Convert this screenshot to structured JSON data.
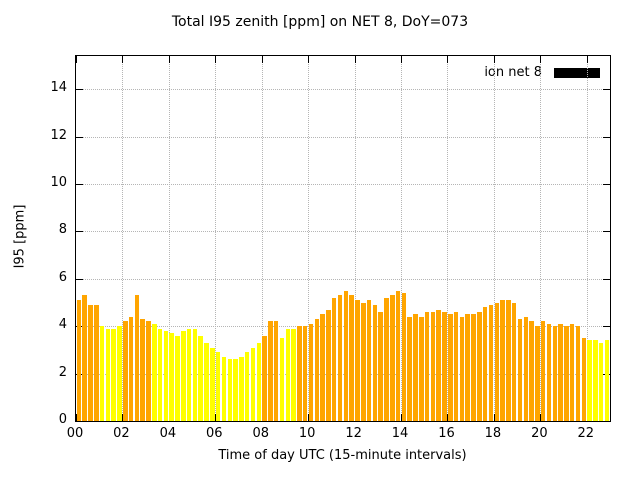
{
  "chart_data": {
    "type": "bar",
    "title": "Total I95 zenith [ppm] on NET 8, DoY=073",
    "xlabel": "Time of day UTC (15-minute intervals)",
    "ylabel": "I95 [ppm]",
    "xlim": [
      0,
      23
    ],
    "ylim": [
      0,
      15.4
    ],
    "grid": true,
    "start_hour": 0,
    "interval_hours": 0.25,
    "ytick_values": [
      0,
      2,
      4,
      6,
      8,
      10,
      12,
      14
    ],
    "xticks": [
      {
        "v": 0,
        "t": "00"
      },
      {
        "v": 2,
        "t": "02"
      },
      {
        "v": 4,
        "t": "04"
      },
      {
        "v": 6,
        "t": "06"
      },
      {
        "v": 8,
        "t": "08"
      },
      {
        "v": 10,
        "t": "10"
      },
      {
        "v": 12,
        "t": "12"
      },
      {
        "v": 14,
        "t": "14"
      },
      {
        "v": 16,
        "t": "16"
      },
      {
        "v": 18,
        "t": "18"
      },
      {
        "v": 20,
        "t": "20"
      },
      {
        "v": 22,
        "t": "22"
      }
    ],
    "legend": {
      "label": "ion net 8",
      "color": "#000000",
      "position": "top-right"
    },
    "color_map": {
      "o": "#ffa500",
      "y": "#ffff00"
    },
    "bar_colors": "ooooyyyyoooooyyyyyyyyyyyyyyyyyyyoooyyyooooooooooooooooooooooooooooooooooooooooooooooooooyyyyy",
    "values": [
      5.1,
      5.3,
      4.9,
      4.9,
      4.0,
      3.9,
      3.9,
      4.0,
      4.2,
      4.4,
      5.3,
      4.3,
      4.2,
      4.1,
      3.9,
      3.8,
      3.7,
      3.6,
      3.8,
      3.9,
      3.9,
      3.6,
      3.3,
      3.1,
      2.9,
      2.7,
      2.6,
      2.6,
      2.7,
      2.9,
      3.1,
      3.3,
      3.6,
      4.2,
      4.2,
      3.5,
      3.9,
      3.9,
      4.0,
      4.0,
      4.1,
      4.3,
      4.5,
      4.7,
      5.2,
      5.3,
      5.5,
      5.3,
      5.1,
      5.0,
      5.1,
      4.9,
      4.6,
      5.2,
      5.3,
      5.5,
      5.4,
      4.4,
      4.5,
      4.4,
      4.6,
      4.6,
      4.7,
      4.6,
      4.5,
      4.6,
      4.4,
      4.5,
      4.5,
      4.6,
      4.8,
      4.9,
      5.0,
      5.1,
      5.1,
      5.0,
      4.3,
      4.4,
      4.2,
      4.0,
      4.2,
      4.1,
      4.0,
      4.1,
      4.0,
      4.1,
      4.0,
      3.5,
      3.4,
      3.4,
      3.3,
      3.4
    ]
  }
}
